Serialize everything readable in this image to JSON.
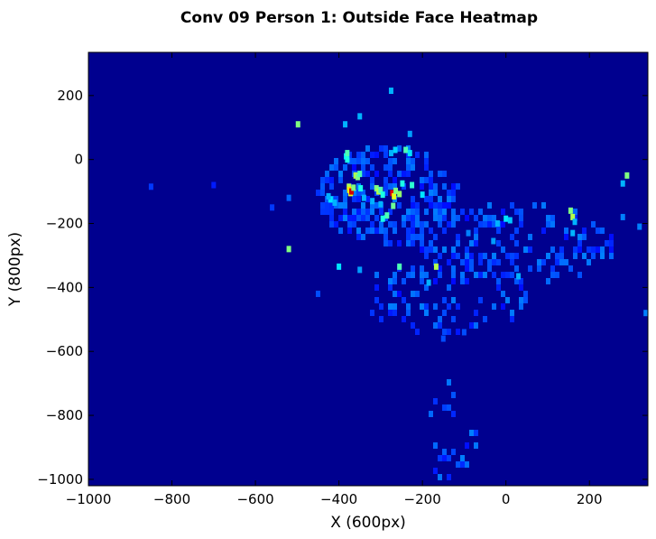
{
  "chart_data": {
    "type": "heatmap",
    "title": "Conv 09 Person 1: Outside Face Heatmap",
    "xlabel": "X (600px)",
    "ylabel": "Y (800px)",
    "xlim": [
      -1000,
      340
    ],
    "ylim": [
      -1020,
      335
    ],
    "xticks": [
      -1000,
      -800,
      -600,
      -400,
      -200,
      0,
      200
    ],
    "yticks": [
      200,
      0,
      -200,
      -400,
      -600,
      -800,
      -1000
    ],
    "xtick_labels": [
      "−1000",
      "−800",
      "−600",
      "−400",
      "−200",
      "0",
      "200"
    ],
    "ytick_labels": [
      "200",
      "0",
      "−200",
      "−400",
      "−600",
      "−800",
      "−1000"
    ],
    "colormap": "jet",
    "background_color": "#00008f",
    "grid": false,
    "bins": [
      [
        -383,
        10,
        0.35
      ],
      [
        -380,
        20,
        0.45
      ],
      [
        -380,
        0,
        0.4
      ],
      [
        -376,
        -85,
        0.55
      ],
      [
        -375,
        -95,
        0.65
      ],
      [
        -372,
        -105,
        0.6
      ],
      [
        -370,
        -100,
        0.92
      ],
      [
        -365,
        -88,
        0.5
      ],
      [
        -360,
        -50,
        0.55
      ],
      [
        -355,
        -55,
        0.5
      ],
      [
        -350,
        -45,
        0.45
      ],
      [
        -348,
        -90,
        0.4
      ],
      [
        -310,
        -90,
        0.5
      ],
      [
        -305,
        -100,
        0.55
      ],
      [
        -300,
        -95,
        0.45
      ],
      [
        -295,
        -110,
        0.4
      ],
      [
        -272,
        -105,
        0.9
      ],
      [
        -268,
        -115,
        0.6
      ],
      [
        -264,
        -98,
        0.5
      ],
      [
        -270,
        -145,
        0.48
      ],
      [
        -255,
        -108,
        0.52
      ],
      [
        -248,
        -75,
        0.4
      ],
      [
        -240,
        30,
        0.45
      ],
      [
        -230,
        20,
        0.35
      ],
      [
        -225,
        -80,
        0.42
      ],
      [
        -265,
        30,
        0.33
      ],
      [
        -275,
        20,
        0.3
      ],
      [
        -300,
        -140,
        0.3
      ],
      [
        -320,
        -130,
        0.3
      ],
      [
        -285,
        -175,
        0.45
      ],
      [
        -295,
        -185,
        0.4
      ],
      [
        -340,
        -120,
        0.3
      ],
      [
        -200,
        -110,
        0.35
      ],
      [
        -420,
        -125,
        0.35
      ],
      [
        -425,
        -115,
        0.3
      ],
      [
        -410,
        -135,
        0.3
      ],
      [
        -498,
        110,
        0.5
      ],
      [
        -385,
        110,
        0.3
      ],
      [
        -350,
        135,
        0.3
      ],
      [
        -275,
        215,
        0.3
      ],
      [
        -230,
        80,
        0.28
      ],
      [
        -520,
        -280,
        0.5
      ],
      [
        -255,
        -335,
        0.45
      ],
      [
        -167,
        -335,
        0.55
      ],
      [
        -400,
        -335,
        0.35
      ],
      [
        -185,
        -385,
        0.3
      ],
      [
        -350,
        -345,
        0.28
      ],
      [
        -20,
        -200,
        0.3
      ],
      [
        0,
        -185,
        0.35
      ],
      [
        10,
        -190,
        0.32
      ],
      [
        -30,
        -255,
        0.28
      ],
      [
        -90,
        -230,
        0.25
      ],
      [
        155,
        -160,
        0.5
      ],
      [
        160,
        -180,
        0.55
      ],
      [
        165,
        -195,
        0.3
      ],
      [
        160,
        -230,
        0.3
      ],
      [
        280,
        -75,
        0.3
      ],
      [
        290,
        -50,
        0.5
      ],
      [
        280,
        -180,
        0.25
      ],
      [
        320,
        -210,
        0.25
      ],
      [
        335,
        -480,
        0.25
      ],
      [
        30,
        -365,
        0.3
      ],
      [
        -150,
        -560,
        0.2
      ],
      [
        -100,
        -540,
        0.2
      ],
      [
        -450,
        -420,
        0.2
      ],
      [
        -520,
        -120,
        0.22
      ],
      [
        -560,
        -150,
        0.18
      ],
      [
        -700,
        -80,
        0.15
      ],
      [
        -850,
        -85,
        0.18
      ]
    ]
  }
}
